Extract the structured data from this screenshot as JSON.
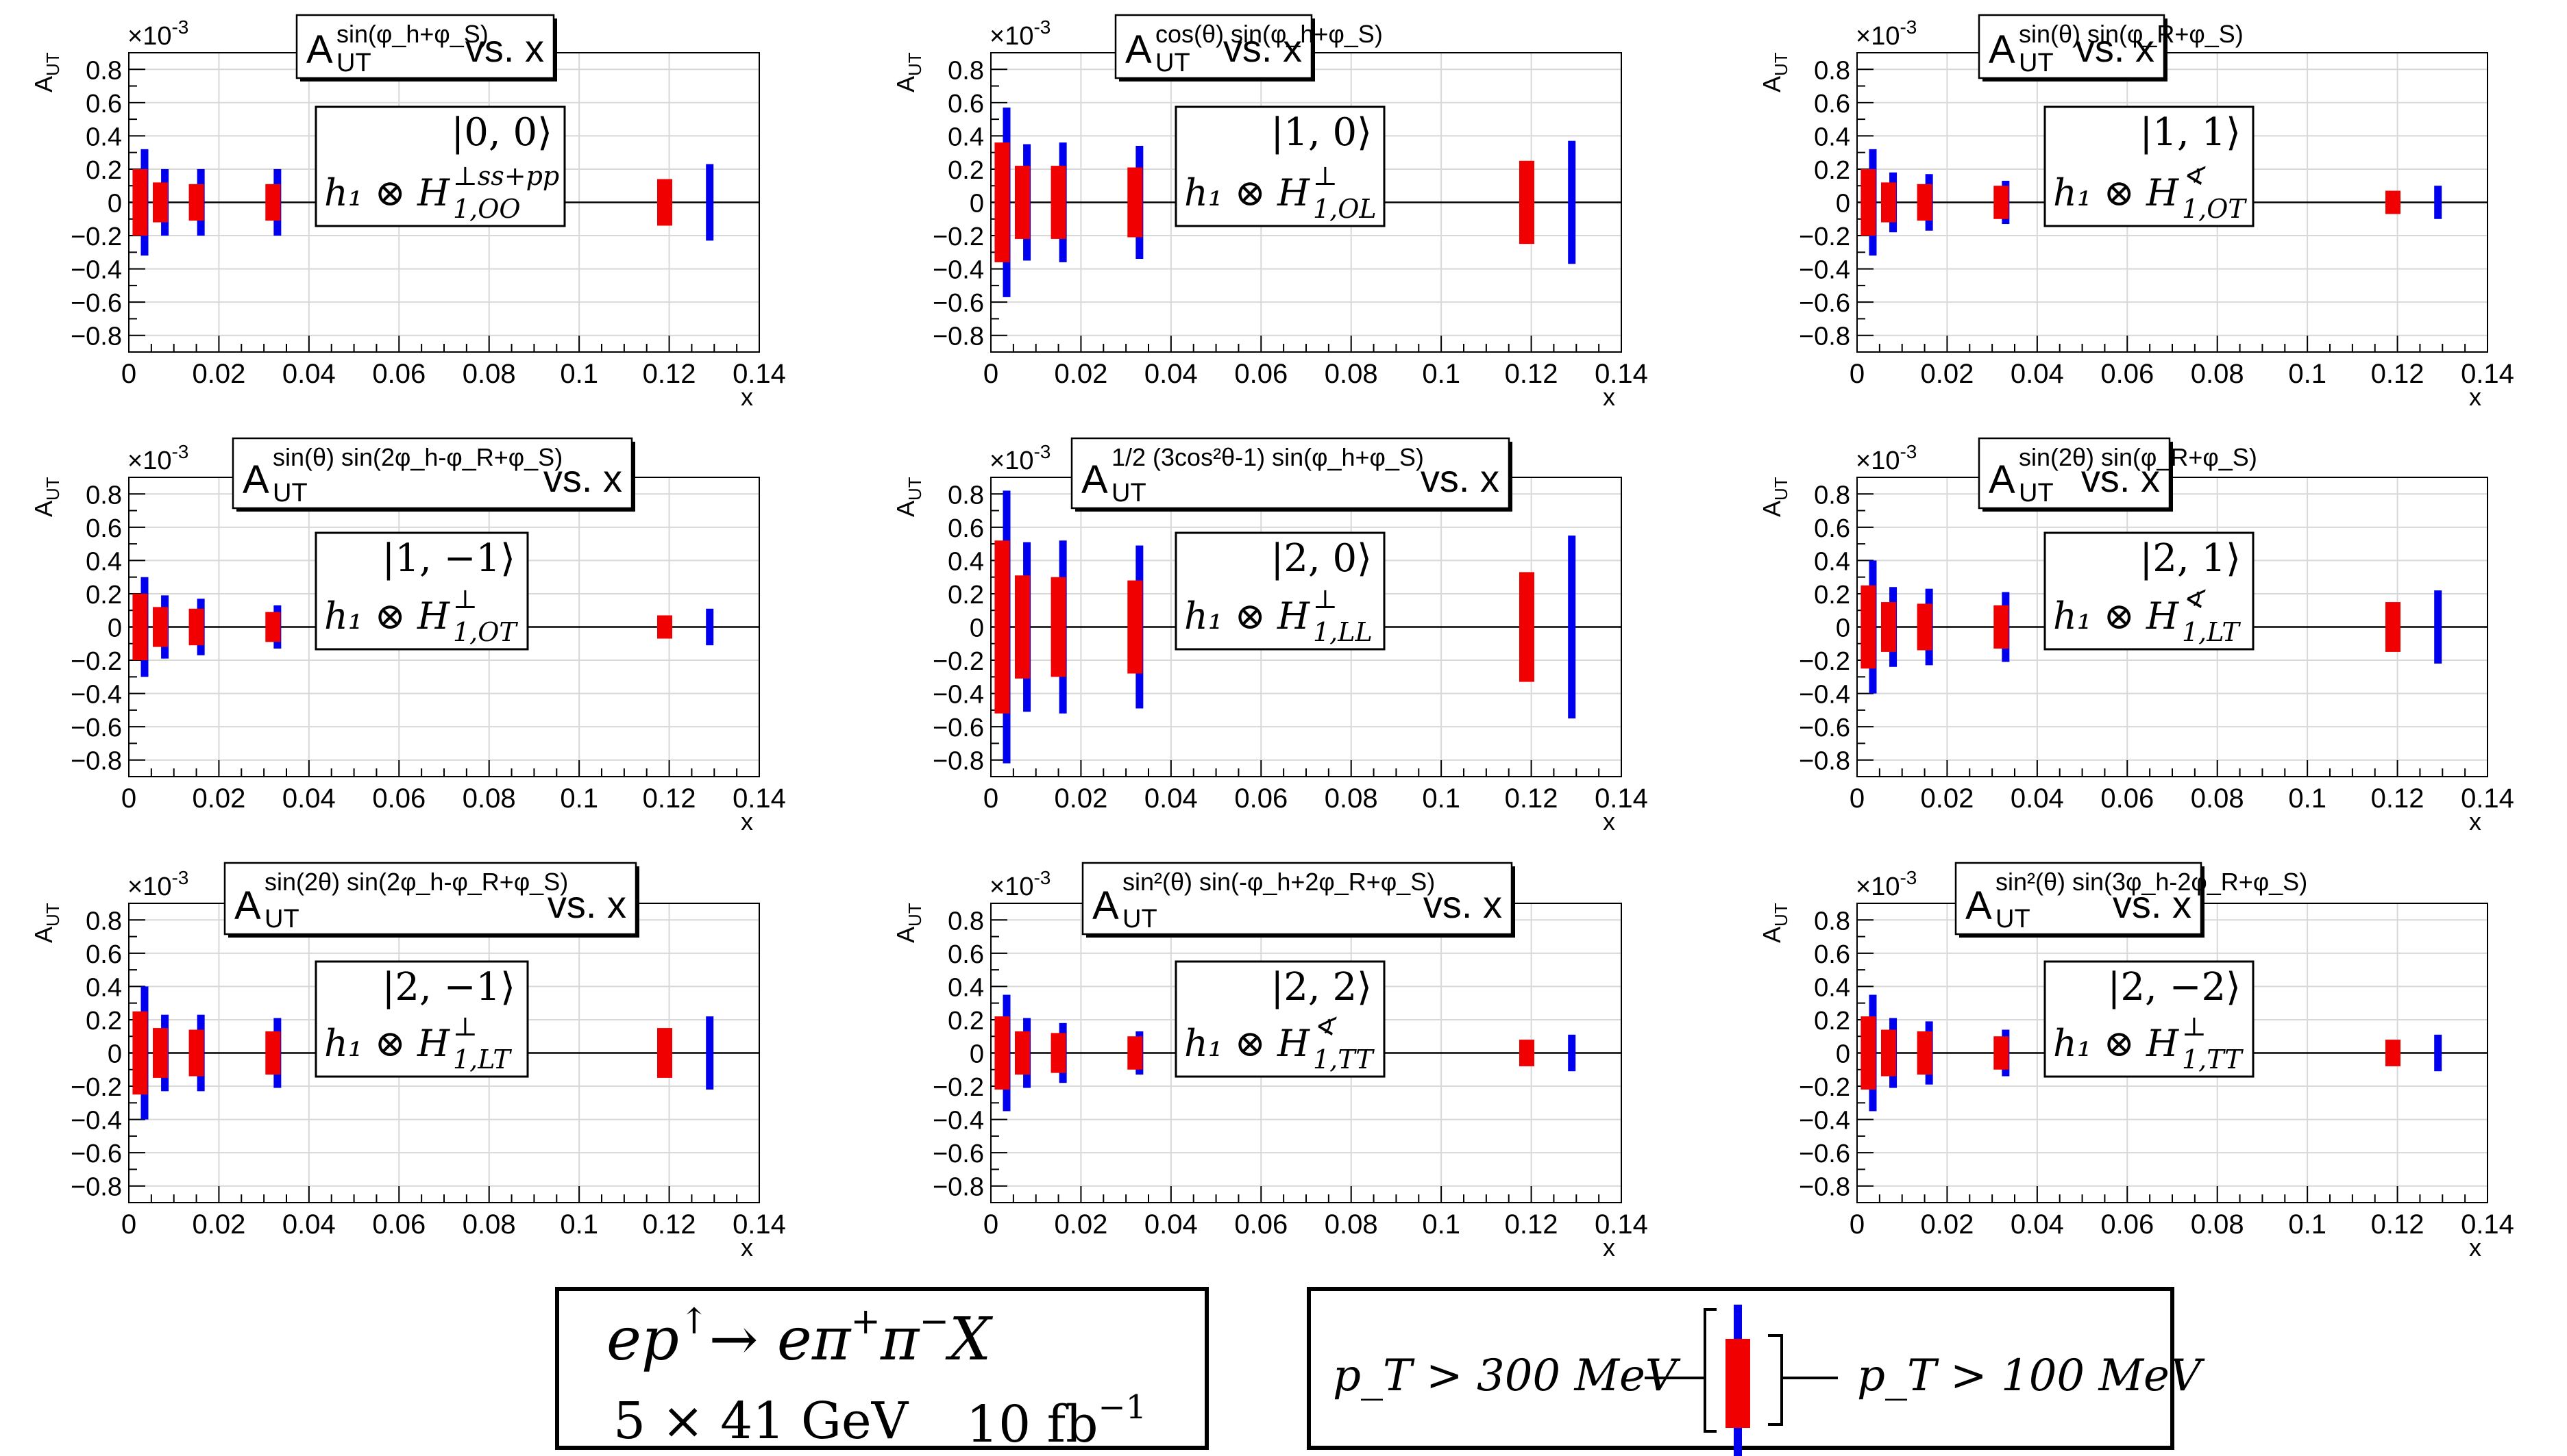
{
  "chart_data": [
    {
      "type": "error-bars",
      "ylabel": "A_UT",
      "xlabel": "x",
      "exponent": "×10",
      "exponent_power": "-3",
      "title": {
        "base": "A",
        "sub": "UT",
        "sup": "sin(φ_h+φ_S)",
        "suffix": "vs. x"
      },
      "state": "|0, 0⟩",
      "operator": {
        "lhs": "h₁ ⊗ H",
        "sup": "⊥ss+pp",
        "sub": "1,OO"
      },
      "xlim": [
        0,
        0.14
      ],
      "ylim": [
        -0.9,
        0.9
      ],
      "x_ticks": [
        "0",
        "0.02",
        "0.04",
        "0.06",
        "0.08",
        "0.1",
        "0.12",
        "0.14"
      ],
      "y_ticks": [
        "0.8",
        "0.6",
        "0.4",
        "0.2",
        "0",
        "−0.2",
        "−0.4",
        "−0.6",
        "−0.8"
      ],
      "series": [
        {
          "name": "p_T > 300 MeV",
          "color": "#f00000",
          "x": [
            0.0025,
            0.007,
            0.015,
            0.032,
            0.119
          ],
          "err": [
            0.2,
            0.12,
            0.11,
            0.11,
            0.14
          ]
        },
        {
          "name": "p_T > 100 MeV",
          "color": "#0000ee",
          "x": [
            0.0035,
            0.008,
            0.016,
            0.033,
            0.129
          ],
          "err": [
            0.32,
            0.2,
            0.2,
            0.2,
            0.23
          ]
        }
      ]
    },
    {
      "type": "error-bars",
      "ylabel": "A_UT",
      "xlabel": "x",
      "exponent": "×10",
      "exponent_power": "-3",
      "title": {
        "base": "A",
        "sub": "UT",
        "sup": "cos(θ) sin(φ_h+φ_S)",
        "suffix": "vs. x"
      },
      "state": "|1, 0⟩",
      "operator": {
        "lhs": "h₁ ⊗ H",
        "sup": "⊥",
        "sub": "1,OL"
      },
      "xlim": [
        0,
        0.14
      ],
      "ylim": [
        -0.9,
        0.9
      ],
      "x_ticks": [
        "0",
        "0.02",
        "0.04",
        "0.06",
        "0.08",
        "0.1",
        "0.12",
        "0.14"
      ],
      "y_ticks": [
        "0.8",
        "0.6",
        "0.4",
        "0.2",
        "0",
        "−0.2",
        "−0.4",
        "−0.6",
        "−0.8"
      ],
      "series": [
        {
          "name": "p_T > 300 MeV",
          "color": "#f00000",
          "x": [
            0.0025,
            0.007,
            0.015,
            0.032,
            0.119
          ],
          "err": [
            0.36,
            0.22,
            0.22,
            0.21,
            0.25
          ]
        },
        {
          "name": "p_T > 100 MeV",
          "color": "#0000ee",
          "x": [
            0.0035,
            0.008,
            0.016,
            0.033,
            0.129
          ],
          "err": [
            0.57,
            0.35,
            0.36,
            0.34,
            0.37
          ]
        }
      ]
    },
    {
      "type": "error-bars",
      "ylabel": "A_UT",
      "xlabel": "x",
      "exponent": "×10",
      "exponent_power": "-3",
      "title": {
        "base": "A",
        "sub": "UT",
        "sup": "sin(θ) sin(φ_R+φ_S)",
        "suffix": "vs. x"
      },
      "state": "|1, 1⟩",
      "operator": {
        "lhs": "h₁ ⊗ H",
        "sup": "∢",
        "sub": "1,OT"
      },
      "xlim": [
        0,
        0.14
      ],
      "ylim": [
        -0.9,
        0.9
      ],
      "x_ticks": [
        "0",
        "0.02",
        "0.04",
        "0.06",
        "0.08",
        "0.1",
        "0.12",
        "0.14"
      ],
      "y_ticks": [
        "0.8",
        "0.6",
        "0.4",
        "0.2",
        "0",
        "−0.2",
        "−0.4",
        "−0.6",
        "−0.8"
      ],
      "series": [
        {
          "name": "p_T > 300 MeV",
          "color": "#f00000",
          "x": [
            0.0025,
            0.007,
            0.015,
            0.032,
            0.119
          ],
          "err": [
            0.2,
            0.12,
            0.11,
            0.1,
            0.07
          ]
        },
        {
          "name": "p_T > 100 MeV",
          "color": "#0000ee",
          "x": [
            0.0035,
            0.008,
            0.016,
            0.033,
            0.129
          ],
          "err": [
            0.32,
            0.18,
            0.17,
            0.13,
            0.1
          ]
        }
      ]
    },
    {
      "type": "error-bars",
      "ylabel": "A_UT",
      "xlabel": "x",
      "exponent": "×10",
      "exponent_power": "-3",
      "title": {
        "base": "A",
        "sub": "UT",
        "sup": "sin(θ) sin(2φ_h-φ_R+φ_S)",
        "suffix": "vs. x"
      },
      "state": "|1, −1⟩",
      "operator": {
        "lhs": "h₁ ⊗ H",
        "sup": "⊥",
        "sub": "1,OT"
      },
      "xlim": [
        0,
        0.14
      ],
      "ylim": [
        -0.9,
        0.9
      ],
      "x_ticks": [
        "0",
        "0.02",
        "0.04",
        "0.06",
        "0.08",
        "0.1",
        "0.12",
        "0.14"
      ],
      "y_ticks": [
        "0.8",
        "0.6",
        "0.4",
        "0.2",
        "0",
        "−0.2",
        "−0.4",
        "−0.6",
        "−0.8"
      ],
      "series": [
        {
          "name": "p_T > 300 MeV",
          "color": "#f00000",
          "x": [
            0.0025,
            0.007,
            0.015,
            0.032,
            0.119
          ],
          "err": [
            0.2,
            0.12,
            0.11,
            0.09,
            0.07
          ]
        },
        {
          "name": "p_T > 100 MeV",
          "color": "#0000ee",
          "x": [
            0.0035,
            0.008,
            0.016,
            0.033,
            0.129
          ],
          "err": [
            0.3,
            0.19,
            0.17,
            0.13,
            0.11
          ]
        }
      ]
    },
    {
      "type": "error-bars",
      "ylabel": "A_UT",
      "xlabel": "x",
      "exponent": "×10",
      "exponent_power": "-3",
      "title": {
        "base": "A",
        "sub": "UT",
        "sup": "1/2 (3cos²θ-1) sin(φ_h+φ_S)",
        "suffix": "vs. x"
      },
      "state": "|2, 0⟩",
      "operator": {
        "lhs": "h₁ ⊗ H",
        "sup": "⊥",
        "sub": "1,LL"
      },
      "xlim": [
        0,
        0.14
      ],
      "ylim": [
        -0.9,
        0.9
      ],
      "x_ticks": [
        "0",
        "0.02",
        "0.04",
        "0.06",
        "0.08",
        "0.1",
        "0.12",
        "0.14"
      ],
      "y_ticks": [
        "0.8",
        "0.6",
        "0.4",
        "0.2",
        "0",
        "−0.2",
        "−0.4",
        "−0.6",
        "−0.8"
      ],
      "series": [
        {
          "name": "p_T > 300 MeV",
          "color": "#f00000",
          "x": [
            0.0025,
            0.007,
            0.015,
            0.032,
            0.119
          ],
          "err": [
            0.52,
            0.31,
            0.3,
            0.28,
            0.33
          ]
        },
        {
          "name": "p_T > 100 MeV",
          "color": "#0000ee",
          "x": [
            0.0035,
            0.008,
            0.016,
            0.033,
            0.129
          ],
          "err": [
            0.82,
            0.51,
            0.52,
            0.49,
            0.55
          ]
        }
      ]
    },
    {
      "type": "error-bars",
      "ylabel": "A_UT",
      "xlabel": "x",
      "exponent": "×10",
      "exponent_power": "-3",
      "title": {
        "base": "A",
        "sub": "UT",
        "sup": "sin(2θ) sin(φ_R+φ_S)",
        "suffix": "vs. x"
      },
      "state": "|2, 1⟩",
      "operator": {
        "lhs": "h₁ ⊗ H",
        "sup": "∢",
        "sub": "1,LT"
      },
      "xlim": [
        0,
        0.14
      ],
      "ylim": [
        -0.9,
        0.9
      ],
      "x_ticks": [
        "0",
        "0.02",
        "0.04",
        "0.06",
        "0.08",
        "0.1",
        "0.12",
        "0.14"
      ],
      "y_ticks": [
        "0.8",
        "0.6",
        "0.4",
        "0.2",
        "0",
        "−0.2",
        "−0.4",
        "−0.6",
        "−0.8"
      ],
      "series": [
        {
          "name": "p_T > 300 MeV",
          "color": "#f00000",
          "x": [
            0.0025,
            0.007,
            0.015,
            0.032,
            0.119
          ],
          "err": [
            0.25,
            0.15,
            0.14,
            0.13,
            0.15
          ]
        },
        {
          "name": "p_T > 100 MeV",
          "color": "#0000ee",
          "x": [
            0.0035,
            0.008,
            0.016,
            0.033,
            0.129
          ],
          "err": [
            0.4,
            0.24,
            0.23,
            0.21,
            0.22
          ]
        }
      ]
    },
    {
      "type": "error-bars",
      "ylabel": "A_UT",
      "xlabel": "x",
      "exponent": "×10",
      "exponent_power": "-3",
      "title": {
        "base": "A",
        "sub": "UT",
        "sup": "sin(2θ) sin(2φ_h-φ_R+φ_S)",
        "suffix": "vs. x"
      },
      "state": "|2, −1⟩",
      "operator": {
        "lhs": "h₁ ⊗ H",
        "sup": "⊥",
        "sub": "1,LT"
      },
      "xlim": [
        0,
        0.14
      ],
      "ylim": [
        -0.9,
        0.9
      ],
      "x_ticks": [
        "0",
        "0.02",
        "0.04",
        "0.06",
        "0.08",
        "0.1",
        "0.12",
        "0.14"
      ],
      "y_ticks": [
        "0.8",
        "0.6",
        "0.4",
        "0.2",
        "0",
        "−0.2",
        "−0.4",
        "−0.6",
        "−0.8"
      ],
      "series": [
        {
          "name": "p_T > 300 MeV",
          "color": "#f00000",
          "x": [
            0.0025,
            0.007,
            0.015,
            0.032,
            0.119
          ],
          "err": [
            0.25,
            0.15,
            0.14,
            0.13,
            0.15
          ]
        },
        {
          "name": "p_T > 100 MeV",
          "color": "#0000ee",
          "x": [
            0.0035,
            0.008,
            0.016,
            0.033,
            0.129
          ],
          "err": [
            0.4,
            0.23,
            0.23,
            0.21,
            0.22
          ]
        }
      ]
    },
    {
      "type": "error-bars",
      "ylabel": "A_UT",
      "xlabel": "x",
      "exponent": "×10",
      "exponent_power": "-3",
      "title": {
        "base": "A",
        "sub": "UT",
        "sup": "sin²(θ) sin(-φ_h+2φ_R+φ_S)",
        "suffix": "vs. x"
      },
      "state": "|2, 2⟩",
      "operator": {
        "lhs": "h₁ ⊗ H",
        "sup": "∢",
        "sub": "1,TT"
      },
      "xlim": [
        0,
        0.14
      ],
      "ylim": [
        -0.9,
        0.9
      ],
      "x_ticks": [
        "0",
        "0.02",
        "0.04",
        "0.06",
        "0.08",
        "0.1",
        "0.12",
        "0.14"
      ],
      "y_ticks": [
        "0.8",
        "0.6",
        "0.4",
        "0.2",
        "0",
        "−0.2",
        "−0.4",
        "−0.6",
        "−0.8"
      ],
      "series": [
        {
          "name": "p_T > 300 MeV",
          "color": "#f00000",
          "x": [
            0.0025,
            0.007,
            0.015,
            0.032,
            0.119
          ],
          "err": [
            0.22,
            0.13,
            0.12,
            0.1,
            0.08
          ]
        },
        {
          "name": "p_T > 100 MeV",
          "color": "#0000ee",
          "x": [
            0.0035,
            0.008,
            0.016,
            0.033,
            0.129
          ],
          "err": [
            0.35,
            0.21,
            0.18,
            0.13,
            0.11
          ]
        }
      ]
    },
    {
      "type": "error-bars",
      "ylabel": "A_UT",
      "xlabel": "x",
      "exponent": "×10",
      "exponent_power": "-3",
      "title": {
        "base": "A",
        "sub": "UT",
        "sup": "sin²(θ) sin(3φ_h-2φ_R+φ_S)",
        "suffix": "vs. x"
      },
      "state": "|2, −2⟩",
      "operator": {
        "lhs": "h₁ ⊗ H",
        "sup": "⊥",
        "sub": "1,TT"
      },
      "xlim": [
        0,
        0.14
      ],
      "ylim": [
        -0.9,
        0.9
      ],
      "x_ticks": [
        "0",
        "0.02",
        "0.04",
        "0.06",
        "0.08",
        "0.1",
        "0.12",
        "0.14"
      ],
      "y_ticks": [
        "0.8",
        "0.6",
        "0.4",
        "0.2",
        "0",
        "−0.2",
        "−0.4",
        "−0.6",
        "−0.8"
      ],
      "series": [
        {
          "name": "p_T > 300 MeV",
          "color": "#f00000",
          "x": [
            0.0025,
            0.007,
            0.015,
            0.032,
            0.119
          ],
          "err": [
            0.22,
            0.14,
            0.13,
            0.1,
            0.08
          ]
        },
        {
          "name": "p_T > 100 MeV",
          "color": "#0000ee",
          "x": [
            0.0035,
            0.008,
            0.016,
            0.033,
            0.129
          ],
          "err": [
            0.35,
            0.21,
            0.19,
            0.14,
            0.11
          ]
        }
      ]
    }
  ],
  "info_box": {
    "reaction_lhs": "ep",
    "reaction_up": "↑",
    "reaction_rhs": "→ eπ",
    "pi_plus": "+",
    "pi": "π",
    "pi_minus": "−",
    "reaction_X": "X",
    "energy": "5 × 41 GeV",
    "lumi": "10 fb",
    "lumi_power": "−1"
  },
  "legend": {
    "left_label": "p_T > 300 MeV",
    "right_label": "p_T > 100 MeV",
    "red": "#f00000",
    "blue": "#0000ee"
  }
}
